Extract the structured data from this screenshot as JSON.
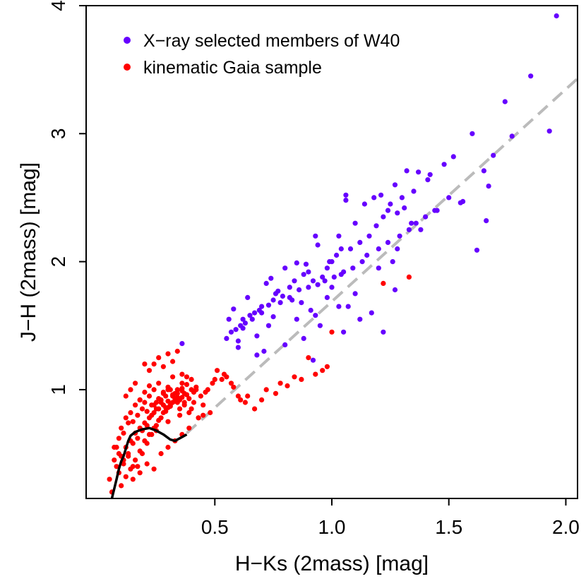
{
  "chart_data": {
    "type": "scatter",
    "title": "",
    "xlabel": "H−Ks (2mass) [mag]",
    "ylabel": "J−H (2mass) [mag]",
    "xlim": [
      -0.05,
      2.05
    ],
    "ylim": [
      0.15,
      4.0
    ],
    "xticks": [
      0.5,
      1.0,
      1.5,
      2.0
    ],
    "xtick_labels": [
      "0.5",
      "1.0",
      "1.5",
      "2.0"
    ],
    "yticks": [
      1,
      2,
      3,
      4
    ],
    "ytick_labels": [
      "1",
      "2",
      "3",
      "4"
    ],
    "grid": false,
    "legend_position": "top-left",
    "series": [
      {
        "name": "X−ray selected members of W40",
        "color": "#6600ff",
        "x": [
          1.96,
          1.85,
          1.93,
          1.74,
          1.77,
          1.6,
          1.69,
          1.52,
          1.48,
          1.65,
          1.67,
          1.62,
          1.66,
          1.55,
          1.56,
          1.41,
          1.42,
          1.37,
          1.32,
          1.35,
          1.3,
          1.25,
          1.27,
          1.21,
          1.24,
          1.18,
          1.14,
          1.06,
          1.06,
          1.1,
          1.03,
          1.04,
          0.99,
          0.94,
          0.93,
          0.89,
          0.85,
          0.8,
          0.72,
          0.74,
          0.64,
          0.58,
          0.56,
          0.62,
          0.67,
          0.7,
          0.75,
          0.77,
          0.82,
          0.84,
          0.88,
          0.9,
          0.92,
          0.96,
          0.98,
          1.0,
          1.02,
          1.08,
          1.12,
          1.16,
          1.19,
          1.22,
          1.28,
          1.31,
          1.34,
          1.38,
          1.44,
          1.5,
          1.2,
          1.26,
          1.28,
          1.1,
          0.98,
          1.0,
          1.04,
          1.07,
          1.17,
          0.91,
          0.87,
          0.83,
          0.79,
          0.76,
          0.7,
          0.66,
          0.63,
          0.59,
          0.57,
          0.61,
          0.65,
          0.69,
          0.73,
          0.78,
          0.82,
          0.86,
          0.9,
          0.94,
          0.97,
          1.01,
          1.05,
          1.09,
          1.13,
          1.15,
          1.2,
          1.24,
          1.29,
          1.33,
          1.36,
          1.4,
          1.45,
          1.05,
          1.12,
          0.95,
          0.88,
          0.8,
          0.71,
          0.68,
          0.62,
          0.6,
          0.73,
          0.75,
          0.85,
          0.93,
          1.03,
          1.22,
          1.27,
          0.92,
          0.68,
          0.36,
          0.6,
          0.55
        ],
        "y": [
          3.92,
          3.45,
          3.02,
          3.25,
          2.98,
          3.0,
          2.83,
          2.82,
          2.76,
          2.71,
          2.59,
          2.09,
          2.32,
          2.46,
          2.47,
          2.64,
          2.68,
          2.7,
          2.71,
          2.55,
          2.5,
          2.45,
          2.6,
          2.52,
          2.4,
          2.5,
          2.45,
          2.52,
          2.48,
          2.3,
          2.2,
          2.1,
          2.0,
          2.13,
          2.2,
          1.98,
          1.99,
          1.95,
          1.83,
          1.87,
          1.72,
          1.63,
          1.55,
          1.55,
          1.6,
          1.65,
          1.7,
          1.77,
          1.8,
          1.85,
          1.9,
          1.92,
          1.85,
          1.88,
          1.95,
          2.0,
          2.05,
          2.1,
          2.15,
          2.2,
          2.28,
          2.35,
          2.38,
          2.42,
          2.3,
          2.25,
          2.4,
          2.5,
          1.95,
          2.0,
          2.1,
          1.75,
          1.72,
          1.8,
          1.9,
          1.65,
          1.6,
          1.62,
          1.68,
          1.7,
          1.73,
          1.75,
          1.6,
          1.55,
          1.52,
          1.47,
          1.45,
          1.5,
          1.58,
          1.62,
          1.66,
          1.68,
          1.72,
          1.78,
          1.8,
          1.82,
          1.85,
          1.88,
          1.92,
          1.95,
          2.0,
          2.05,
          2.1,
          2.15,
          2.2,
          2.25,
          2.3,
          2.35,
          2.4,
          1.45,
          1.55,
          1.5,
          1.4,
          1.35,
          1.3,
          1.42,
          1.48,
          1.38,
          1.5,
          1.57,
          1.55,
          1.58,
          1.65,
          1.45,
          1.78,
          1.23,
          1.27,
          1.36,
          1.33,
          1.4
        ]
      },
      {
        "name": "kinematic Gaia sample",
        "color": "#ff0000",
        "x": [
          0.05,
          0.07,
          0.08,
          0.09,
          0.1,
          0.11,
          0.12,
          0.13,
          0.14,
          0.15,
          0.16,
          0.17,
          0.18,
          0.19,
          0.2,
          0.21,
          0.22,
          0.23,
          0.24,
          0.25,
          0.26,
          0.27,
          0.28,
          0.29,
          0.3,
          0.31,
          0.32,
          0.33,
          0.34,
          0.35,
          0.36,
          0.37,
          0.38,
          0.39,
          0.4,
          0.41,
          0.42,
          0.43,
          0.44,
          0.45,
          0.47,
          0.49,
          0.51,
          0.53,
          0.55,
          0.58,
          0.61,
          0.64,
          0.72,
          0.78,
          0.84,
          0.9,
          0.96,
          1.0,
          1.22,
          1.33,
          0.06,
          0.09,
          0.11,
          0.13,
          0.15,
          0.17,
          0.19,
          0.21,
          0.23,
          0.25,
          0.27,
          0.29,
          0.31,
          0.33,
          0.35,
          0.37,
          0.39,
          0.41,
          0.1,
          0.12,
          0.14,
          0.16,
          0.18,
          0.2,
          0.22,
          0.24,
          0.26,
          0.28,
          0.3,
          0.32,
          0.34,
          0.36,
          0.38,
          0.4,
          0.08,
          0.1,
          0.12,
          0.14,
          0.16,
          0.18,
          0.2,
          0.22,
          0.24,
          0.26,
          0.28,
          0.3,
          0.32,
          0.34,
          0.36,
          0.38,
          0.15,
          0.17,
          0.19,
          0.21,
          0.23,
          0.25,
          0.27,
          0.29,
          0.31,
          0.33,
          0.35,
          0.37,
          0.22,
          0.24,
          0.26,
          0.28,
          0.3,
          0.32,
          0.34,
          0.36,
          0.38,
          0.42,
          0.46,
          0.5,
          0.54,
          0.57,
          0.6,
          0.63,
          0.67,
          0.7,
          0.76,
          0.81,
          0.87,
          0.93,
          0.98,
          0.07,
          0.09,
          0.11,
          0.13,
          0.15,
          0.18,
          0.21,
          0.24,
          0.27,
          0.3,
          0.33,
          0.36,
          0.39,
          0.12,
          0.14,
          0.16,
          0.18,
          0.2,
          0.22,
          0.24,
          0.26,
          0.28,
          0.3,
          0.32,
          0.34,
          0.36,
          0.2,
          0.25,
          0.3,
          0.35,
          0.4,
          0.43,
          0.45,
          0.48
        ],
        "y": [
          0.3,
          0.45,
          0.55,
          0.62,
          0.7,
          0.66,
          0.78,
          0.74,
          0.82,
          0.75,
          0.88,
          0.8,
          0.92,
          0.85,
          0.9,
          0.83,
          0.95,
          0.88,
          1.0,
          0.9,
          1.05,
          0.92,
          0.98,
          0.86,
          1.02,
          0.88,
          1.1,
          0.93,
          1.0,
          0.85,
          1.12,
          0.9,
          0.96,
          0.82,
          1.08,
          0.9,
          1.0,
          0.78,
          0.95,
          0.88,
          1.0,
          1.05,
          1.15,
          1.08,
          1.1,
          1.02,
          0.92,
          0.95,
          1.0,
          1.05,
          1.1,
          1.25,
          1.15,
          1.45,
          1.83,
          1.88,
          0.2,
          0.35,
          0.42,
          0.5,
          0.58,
          0.62,
          0.68,
          0.72,
          0.8,
          0.85,
          0.9,
          0.95,
          1.0,
          0.97,
          0.92,
          0.88,
          0.93,
          0.98,
          0.25,
          0.32,
          0.38,
          0.45,
          0.52,
          0.6,
          0.65,
          0.7,
          0.76,
          0.82,
          0.86,
          0.9,
          0.94,
          0.99,
          1.04,
          1.0,
          0.4,
          0.48,
          0.55,
          0.6,
          0.66,
          0.7,
          0.74,
          0.78,
          0.82,
          0.85,
          0.88,
          0.91,
          0.95,
          0.97,
          1.01,
          0.96,
          0.3,
          0.4,
          0.5,
          0.58,
          0.65,
          0.72,
          0.78,
          0.83,
          0.87,
          0.91,
          0.93,
          0.97,
          1.15,
          1.2,
          1.25,
          1.18,
          1.28,
          1.22,
          1.3,
          1.05,
          1.1,
          1.02,
          0.98,
          1.08,
          1.12,
          1.05,
          0.95,
          0.9,
          0.85,
          0.92,
          0.97,
          1.03,
          1.08,
          1.12,
          1.18,
          0.55,
          0.5,
          0.45,
          0.48,
          0.4,
          0.35,
          0.42,
          0.38,
          0.5,
          0.55,
          0.6,
          0.65,
          0.7,
          0.95,
          1.0,
          1.05,
          0.92,
          0.98,
          1.03,
          0.88,
          0.93,
          0.97,
          1.0,
          0.96,
          0.9,
          0.94,
          1.2,
          0.68,
          0.75,
          0.8,
          0.85,
          0.78,
          0.8,
          0.82
        ]
      }
    ],
    "lines": [
      {
        "name": "",
        "color": "#000000",
        "style": "solid",
        "x": [
          0.06,
          0.08,
          0.09,
          0.1,
          0.11,
          0.12,
          0.13,
          0.14,
          0.16,
          0.19,
          0.22,
          0.25,
          0.28,
          0.31,
          0.33,
          0.35,
          0.38
        ],
        "y": [
          0.15,
          0.3,
          0.38,
          0.44,
          0.48,
          0.54,
          0.6,
          0.64,
          0.67,
          0.69,
          0.7,
          0.68,
          0.65,
          0.61,
          0.6,
          0.62,
          0.65
        ]
      },
      {
        "name": "",
        "color": "#bbbbbb",
        "style": "dashed",
        "x": [
          0.38,
          2.05
        ],
        "y": [
          0.66,
          3.43
        ]
      }
    ]
  },
  "legend": {
    "items": [
      {
        "label": "X−ray selected members of W40",
        "color": "#6600ff"
      },
      {
        "label": "kinematic Gaia sample",
        "color": "#ff0000"
      }
    ]
  }
}
